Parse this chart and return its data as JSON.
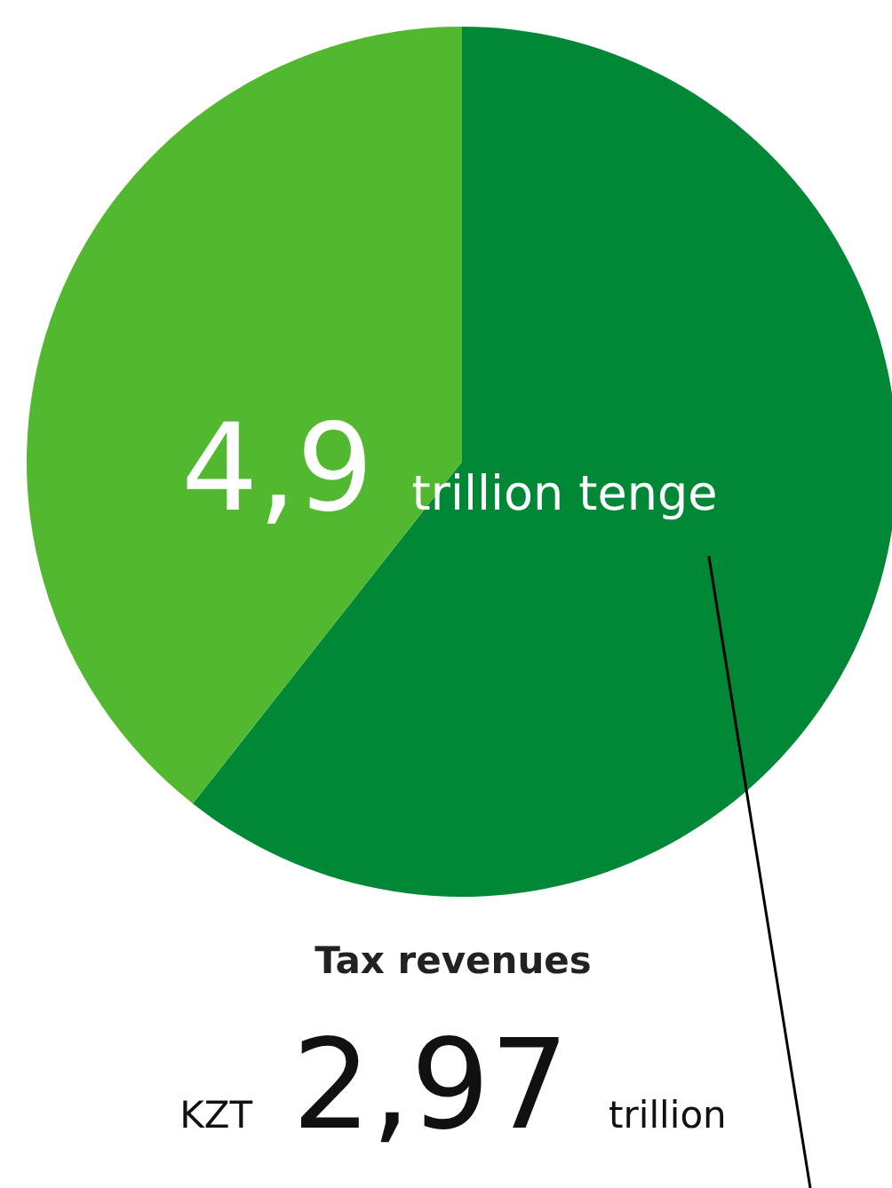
{
  "chart_data": {
    "type": "pie",
    "title": "4,9 trillion tenge",
    "categories": [
      "Tax revenues",
      null
    ],
    "values": [
      2.97,
      1.93
    ],
    "colors": [
      "#008837",
      "#52b830"
    ],
    "value_labels": [
      "KZT 2,97 trillion",
      null
    ]
  }
}
